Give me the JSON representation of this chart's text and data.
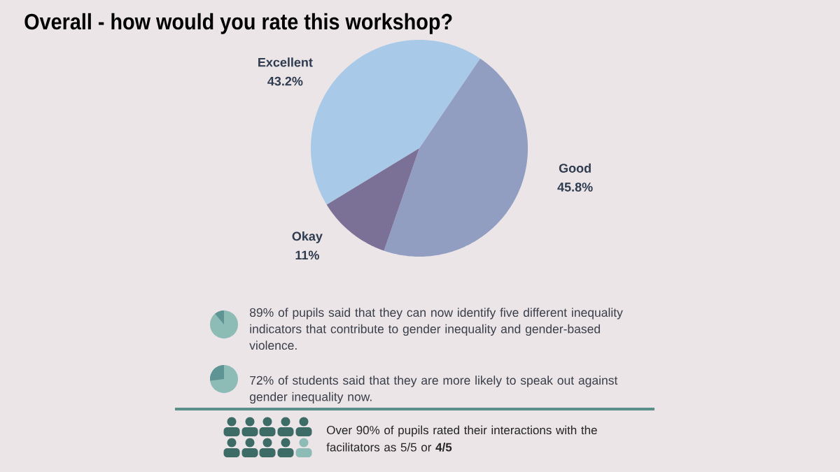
{
  "chart_data": {
    "type": "pie",
    "title": "Overall - how would you rate this workshop?",
    "categories": [
      "Excellent",
      "Good",
      "Okay"
    ],
    "values": [
      43.2,
      45.8,
      11
    ],
    "value_labels": [
      "43.2%",
      "45.8%",
      "11%"
    ],
    "colors": [
      "#a9c9e8",
      "#929dc2",
      "#7b7196"
    ],
    "annotations": [
      "89% of pupils said that they can now identify five different inequality indicators that contribute to gender inequality and gender-based violence.",
      "72% of students said that they are more likely to speak out against gender inequality now.",
      "Over 90% of pupils rated their interactions with the facilitators as 5/5 or **4/5**"
    ]
  }
}
